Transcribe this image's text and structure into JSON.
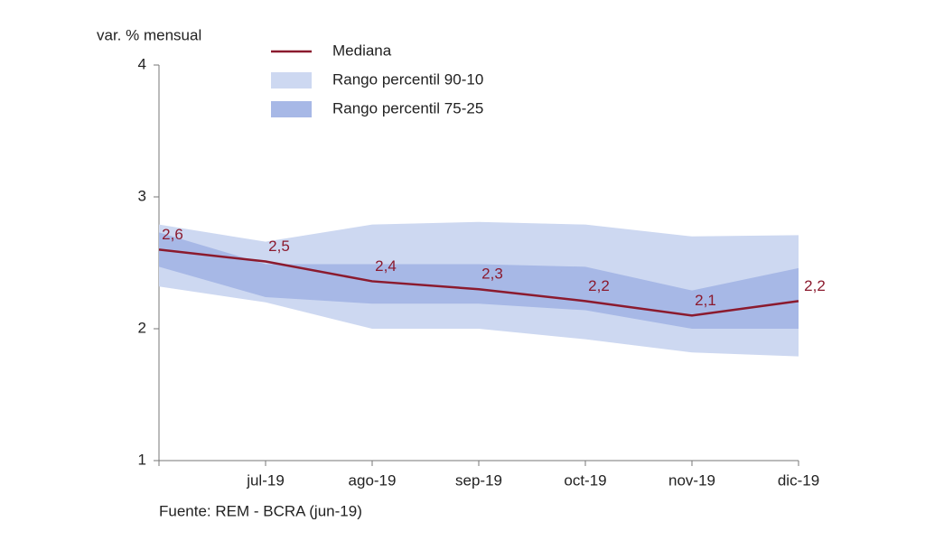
{
  "chart_data": {
    "type": "line",
    "y_axis_label": "var. % mensual",
    "source": "Fuente: REM - BCRA (jun-19)",
    "categories": [
      null,
      "jul-19",
      "ago-19",
      "sep-19",
      "oct-19",
      "nov-19",
      "dic-19"
    ],
    "series": [
      {
        "name": "Mediana",
        "color": "#8b1a2e",
        "values": [
          2.6,
          2.51,
          2.36,
          2.3,
          2.21,
          2.1,
          2.21
        ],
        "value_labels": [
          "2,6",
          "2,5",
          "2,4",
          "2,3",
          "2,2",
          "2,1",
          "2,2"
        ]
      },
      {
        "name": "Rango percentil 90-10",
        "color": "#cdd8f1",
        "high": [
          2.79,
          2.66,
          2.79,
          2.81,
          2.79,
          2.7,
          2.71
        ],
        "low": [
          2.32,
          2.2,
          2.0,
          2.0,
          1.92,
          1.82,
          1.79
        ]
      },
      {
        "name": "Rango percentil 75-25",
        "color": "#a7b8e6",
        "high": [
          2.73,
          2.49,
          2.49,
          2.49,
          2.47,
          2.29,
          2.46
        ],
        "low": [
          2.47,
          2.24,
          2.19,
          2.19,
          2.14,
          2.0,
          2.0
        ]
      }
    ],
    "ylim": [
      1,
      4
    ],
    "yticks": [
      1,
      2,
      3,
      4
    ]
  }
}
